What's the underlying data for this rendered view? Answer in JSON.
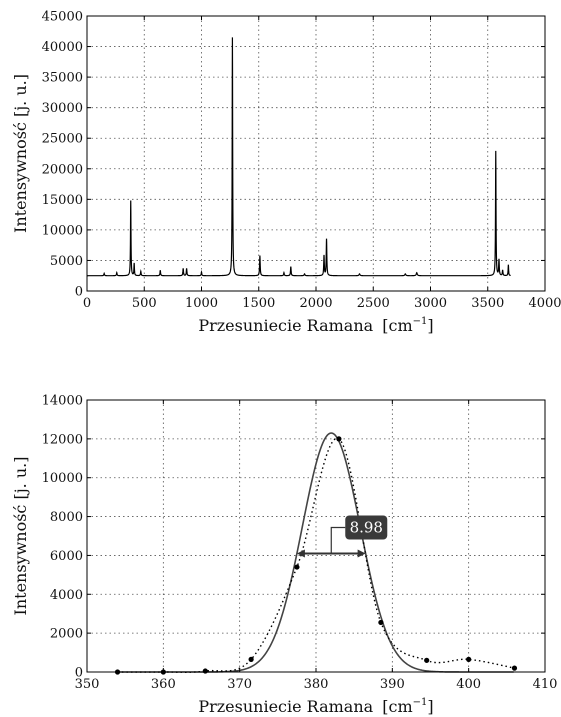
{
  "chart_data": [
    {
      "type": "line",
      "xlabel": "Przesuniecie Ramana",
      "xlabel_unit": "[cm",
      "xlabel_sup": "−1",
      "xlabel_close": "]",
      "ylabel": "Intensywność [j. u.]",
      "xlim": [
        0,
        4000
      ],
      "ylim": [
        0,
        45000
      ],
      "xticks": [
        0,
        500,
        1000,
        1500,
        2000,
        2500,
        3000,
        3500,
        4000
      ],
      "yticks": [
        0,
        5000,
        10000,
        15000,
        20000,
        25000,
        30000,
        35000,
        40000,
        45000
      ],
      "grid": true,
      "baseline": 2500,
      "x_range": [
        0,
        3700
      ],
      "peaks": [
        {
          "x": 150,
          "y": 2900,
          "w": 6
        },
        {
          "x": 260,
          "y": 3000,
          "w": 6
        },
        {
          "x": 382,
          "y": 14800,
          "w": 5
        },
        {
          "x": 412,
          "y": 4500,
          "w": 5
        },
        {
          "x": 470,
          "y": 3200,
          "w": 6
        },
        {
          "x": 640,
          "y": 3400,
          "w": 6
        },
        {
          "x": 840,
          "y": 3700,
          "w": 6
        },
        {
          "x": 870,
          "y": 3700,
          "w": 6
        },
        {
          "x": 1000,
          "y": 3100,
          "w": 6
        },
        {
          "x": 1270,
          "y": 41500,
          "w": 5
        },
        {
          "x": 1510,
          "y": 5800,
          "w": 6
        },
        {
          "x": 1720,
          "y": 3000,
          "w": 6
        },
        {
          "x": 1780,
          "y": 4000,
          "w": 6
        },
        {
          "x": 1900,
          "y": 2800,
          "w": 8
        },
        {
          "x": 2070,
          "y": 5800,
          "w": 6
        },
        {
          "x": 2092,
          "y": 8500,
          "w": 6
        },
        {
          "x": 2380,
          "y": 2800,
          "w": 10
        },
        {
          "x": 2780,
          "y": 2800,
          "w": 10
        },
        {
          "x": 2880,
          "y": 3000,
          "w": 10
        },
        {
          "x": 3570,
          "y": 22900,
          "w": 5
        },
        {
          "x": 3598,
          "y": 5100,
          "w": 6
        },
        {
          "x": 3630,
          "y": 3400,
          "w": 6
        },
        {
          "x": 3680,
          "y": 4300,
          "w": 5
        }
      ]
    },
    {
      "type": "scatter",
      "xlabel": "Przesuniecie Ramana",
      "xlabel_unit": "[cm",
      "xlabel_sup": "−1",
      "xlabel_close": "]",
      "ylabel": "Intensywność [j. u.]",
      "xlim": [
        350,
        410
      ],
      "ylim": [
        0,
        14000
      ],
      "xticks": [
        350,
        360,
        370,
        380,
        390,
        400,
        410
      ],
      "yticks": [
        0,
        2000,
        4000,
        6000,
        8000,
        10000,
        12000,
        14000
      ],
      "grid": true,
      "points": [
        {
          "x": 354,
          "y": 0
        },
        {
          "x": 360,
          "y": 0
        },
        {
          "x": 365.5,
          "y": 50
        },
        {
          "x": 371.5,
          "y": 650
        },
        {
          "x": 377.5,
          "y": 5400
        },
        {
          "x": 383,
          "y": 12000
        },
        {
          "x": 388.5,
          "y": 2550
        },
        {
          "x": 394.5,
          "y": 600
        },
        {
          "x": 400,
          "y": 650
        },
        {
          "x": 406,
          "y": 200
        }
      ],
      "fit": {
        "type": "gaussian",
        "center": 382,
        "amplitude": 12300,
        "sigma": 3.8
      },
      "fwhm": {
        "x_start": 377.5,
        "x_end": 386.5,
        "y": 6100,
        "label": "8.98"
      }
    }
  ]
}
